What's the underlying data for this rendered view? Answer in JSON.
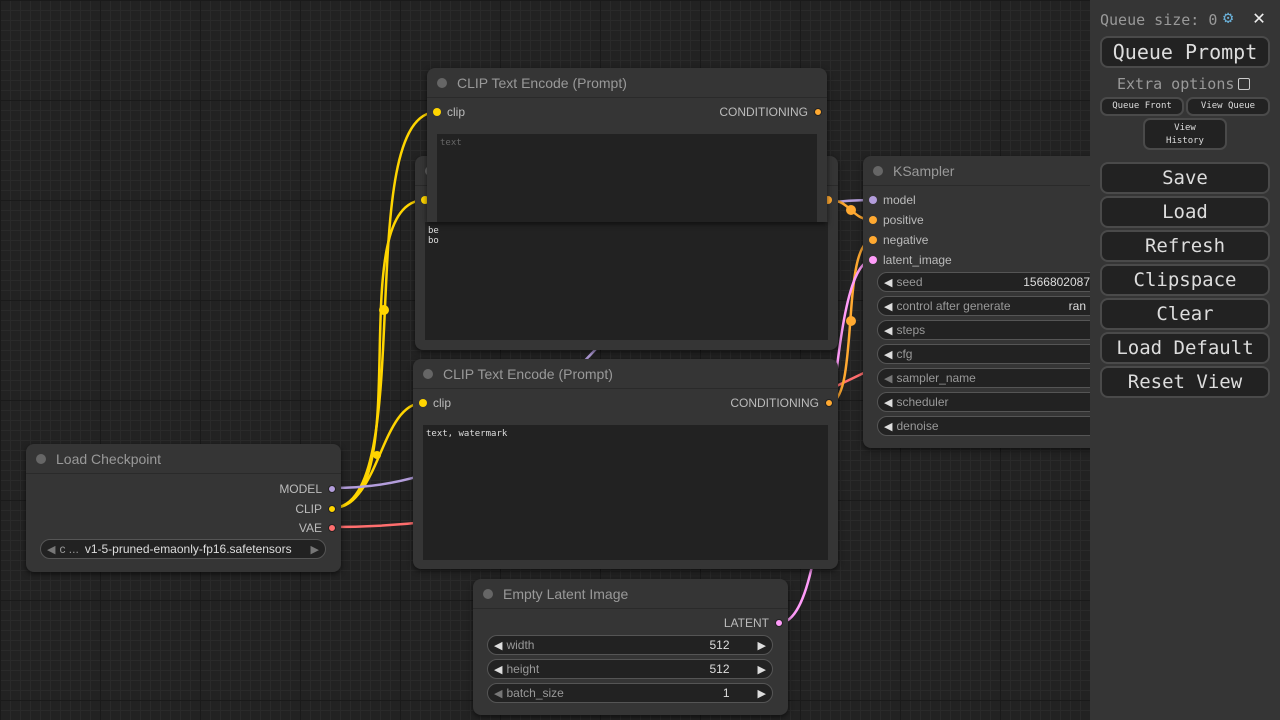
{
  "panel": {
    "queue_size_label": "Queue size: 0",
    "queue_prompt": "Queue Prompt",
    "extra_options": "Extra options",
    "queue_front": "Queue Front",
    "view_queue": "View Queue",
    "view_history_1": "View",
    "view_history_2": "History",
    "buttons": [
      "Save",
      "Load",
      "Refresh",
      "Clipspace",
      "Clear",
      "Load Default",
      "Reset View"
    ]
  },
  "colors": {
    "clip": "#ffd500",
    "model": "#b39ddb",
    "vae": "#ff6e6e",
    "conditioning": "#ffa931",
    "latent": "#ff9cf9"
  },
  "clip_top": {
    "title": "CLIP Text Encode (Prompt)",
    "input": "clip",
    "output": "CONDITIONING",
    "placeholder": "text"
  },
  "clip_hidden": {
    "text_line1": "be",
    "text_line2": "bo"
  },
  "clip_bottom": {
    "title": "CLIP Text Encode (Prompt)",
    "input": "clip",
    "output": "CONDITIONING",
    "text": "text, watermark"
  },
  "checkpoint": {
    "title": "Load Checkpoint",
    "outputs": [
      "MODEL",
      "CLIP",
      "VAE"
    ],
    "ckpt_label": "c ...",
    "ckpt_value": "v1-5-pruned-emaonly-fp16.safetensors"
  },
  "latent": {
    "title": "Empty Latent Image",
    "output": "LATENT",
    "widgets": [
      {
        "label": "width",
        "value": "512"
      },
      {
        "label": "height",
        "value": "512"
      },
      {
        "label": "batch_size",
        "value": "1"
      }
    ]
  },
  "ksampler": {
    "title": "KSampler",
    "inputs": [
      "model",
      "positive",
      "negative",
      "latent_image"
    ],
    "widgets": [
      {
        "label": "seed",
        "value": "1566802087"
      },
      {
        "label": "control after generate",
        "value": "ran"
      },
      {
        "label": "steps",
        "value": ""
      },
      {
        "label": "cfg",
        "value": ""
      },
      {
        "label": "sampler_name",
        "value": ""
      },
      {
        "label": "scheduler",
        "value": ""
      },
      {
        "label": "denoise",
        "value": ""
      }
    ]
  }
}
